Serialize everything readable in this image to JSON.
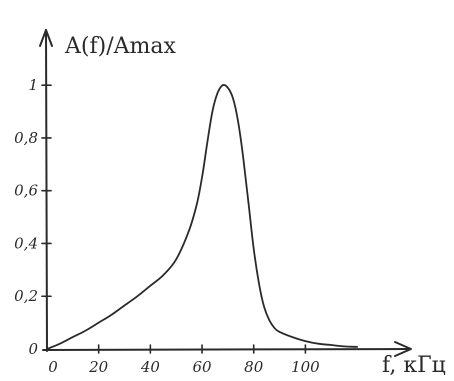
{
  "chart_data": {
    "type": "line",
    "ylabel": "A(f)/Amax",
    "xlabel": "f, кГц",
    "xlim": [
      0,
      125
    ],
    "ylim": [
      0,
      1.05
    ],
    "x_ticks": [
      0,
      20,
      40,
      60,
      80,
      100
    ],
    "x_tick_labels": [
      "0",
      "20",
      "40",
      "60",
      "80",
      "100"
    ],
    "y_ticks": [
      0,
      0.2,
      0.4,
      0.6,
      0.8,
      1
    ],
    "y_tick_labels": [
      "0",
      "0,2",
      "0,4",
      "0,6",
      "0,8",
      "1"
    ],
    "grid": false,
    "series": [
      {
        "x": [
          0,
          5,
          10,
          15,
          20,
          25,
          30,
          35,
          40,
          45,
          50,
          55,
          58,
          60,
          62,
          64,
          66,
          68,
          70,
          72,
          74,
          76,
          78,
          80,
          82,
          84,
          86,
          88,
          90,
          95,
          100,
          105,
          110,
          115,
          120
        ],
        "values": [
          0,
          0.02,
          0.045,
          0.07,
          0.1,
          0.13,
          0.165,
          0.2,
          0.24,
          0.28,
          0.34,
          0.45,
          0.55,
          0.65,
          0.78,
          0.9,
          0.97,
          1.0,
          0.99,
          0.95,
          0.86,
          0.72,
          0.55,
          0.38,
          0.25,
          0.16,
          0.11,
          0.08,
          0.065,
          0.045,
          0.03,
          0.02,
          0.015,
          0.01,
          0.008
        ]
      }
    ]
  }
}
